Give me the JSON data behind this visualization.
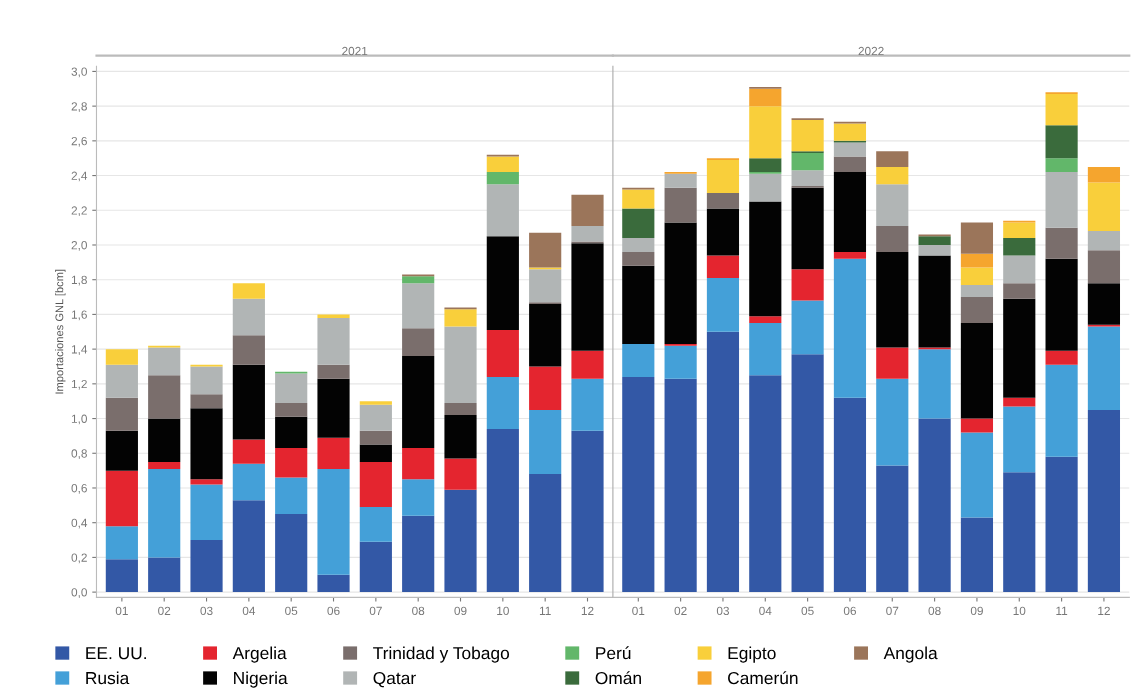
{
  "chart_data": [
    {
      "type": "bar",
      "stacked": true,
      "title": "2021",
      "ylabel": "Importaciones GNL [bcm]",
      "categories": [
        "01",
        "02",
        "03",
        "04",
        "05",
        "06",
        "07",
        "08",
        "09",
        "10",
        "11",
        "12"
      ],
      "ylim": [
        -0.03,
        3.03
      ],
      "yticks": [
        {
          "value": 0,
          "label": "0,0"
        },
        {
          "value": 0.2,
          "label": "0,2"
        },
        {
          "value": 0.4,
          "label": "0,4"
        },
        {
          "value": 0.6,
          "label": "0,6"
        },
        {
          "value": 0.8,
          "label": "0,8"
        },
        {
          "value": 1.0,
          "label": "1,0"
        },
        {
          "value": 1.2,
          "label": "1,2"
        },
        {
          "value": 1.4,
          "label": "1,4"
        },
        {
          "value": 1.6,
          "label": "1,6"
        },
        {
          "value": 1.8,
          "label": "1,8"
        },
        {
          "value": 2.0,
          "label": "2,0"
        },
        {
          "value": 2.2,
          "label": "2,2"
        },
        {
          "value": 2.4,
          "label": "2,4"
        },
        {
          "value": 2.6,
          "label": "2,6"
        },
        {
          "value": 2.8,
          "label": "2,8"
        },
        {
          "value": 3.0,
          "label": "3,0"
        }
      ],
      "grid": "y",
      "legend": "bottom",
      "series": [
        {
          "name": "EE. UU.",
          "color": "#3358a6",
          "values": [
            0.19,
            0.2,
            0.3,
            0.53,
            0.45,
            0.1,
            0.29,
            0.44,
            0.59,
            0.94,
            0.68,
            0.93
          ]
        },
        {
          "name": "Rusia",
          "color": "#44a0d8",
          "values": [
            0.19,
            0.51,
            0.32,
            0.21,
            0.21,
            0.61,
            0.2,
            0.21,
            0,
            0.3,
            0.37,
            0.3
          ]
        },
        {
          "name": "Argelia",
          "color": "#e4252f",
          "values": [
            0.32,
            0.04,
            0.03,
            0.14,
            0.17,
            0.18,
            0.26,
            0.18,
            0.18,
            0.27,
            0.25,
            0.16
          ]
        },
        {
          "name": "Nigeria",
          "color": "#030303",
          "values": [
            0.23,
            0.25,
            0.41,
            0.43,
            0.18,
            0.34,
            0.1,
            0.53,
            0.25,
            0.54,
            0.36,
            0.62
          ]
        },
        {
          "name": "Trinidad y Tobago",
          "color": "#7a6e6c",
          "values": [
            0.19,
            0.25,
            0.08,
            0.17,
            0.08,
            0.08,
            0.08,
            0.16,
            0.07,
            0,
            0.01,
            0.01
          ]
        },
        {
          "name": "Qatar",
          "color": "#b1b5b5",
          "values": [
            0.19,
            0.16,
            0.16,
            0.21,
            0.17,
            0.27,
            0.15,
            0.26,
            0.44,
            0.3,
            0.19,
            0.09
          ]
        },
        {
          "name": "Perú",
          "color": "#62b76a",
          "values": [
            0,
            0,
            0,
            0,
            0.01,
            0,
            0,
            0.04,
            0,
            0.07,
            0,
            0
          ]
        },
        {
          "name": "Omán",
          "color": "#3a6b3c",
          "values": [
            0,
            0,
            0,
            0,
            0,
            0,
            0,
            0,
            0,
            0,
            0,
            0
          ]
        },
        {
          "name": "Egipto",
          "color": "#f9cf3b",
          "values": [
            0.09,
            0.01,
            0.01,
            0.09,
            0,
            0.02,
            0.02,
            0,
            0.1,
            0.09,
            0.01,
            0
          ]
        },
        {
          "name": "Camerún",
          "color": "#f5a52e",
          "values": [
            0,
            0,
            0,
            0,
            0,
            0,
            0,
            0,
            0,
            0,
            0,
            0
          ]
        },
        {
          "name": "Angola",
          "color": "#9b755a",
          "values": [
            0,
            0,
            0,
            0,
            0,
            0,
            0,
            0.01,
            0.01,
            0.01,
            0.2,
            0.18
          ]
        }
      ]
    },
    {
      "type": "bar",
      "stacked": true,
      "title": "2022",
      "categories": [
        "01",
        "02",
        "03",
        "04",
        "05",
        "06",
        "07",
        "08",
        "09",
        "10",
        "11",
        "12"
      ],
      "ylim": [
        -0.03,
        3.03
      ],
      "grid": "y",
      "tick_labels": "x",
      "series": [
        {
          "color": "#3358a6",
          "values": [
            1.24,
            1.23,
            1.5,
            1.25,
            1.37,
            1.12,
            0.73,
            1.0,
            0.43,
            0.69,
            0.78,
            1.05
          ]
        },
        {
          "color": "#44a0d8",
          "values": [
            0.19,
            0.19,
            0.31,
            0.3,
            0.31,
            0.8,
            0.5,
            0.4,
            0.49,
            0.38,
            0.53,
            0.48
          ]
        },
        {
          "color": "#e4252f",
          "values": [
            0,
            0.01,
            0.13,
            0.04,
            0.18,
            0.04,
            0.18,
            0.01,
            0.08,
            0.05,
            0.08,
            0.01
          ]
        },
        {
          "color": "#030303",
          "values": [
            0.45,
            0.7,
            0.27,
            0.66,
            0.47,
            0.46,
            0.55,
            0.53,
            0.55,
            0.57,
            0.53,
            0.24
          ]
        },
        {
          "color": "#7a6e6c",
          "values": [
            0.08,
            0.2,
            0.09,
            0,
            0.01,
            0.09,
            0.15,
            0,
            0.15,
            0.09,
            0.18,
            0.19
          ]
        },
        {
          "color": "#b1b5b5",
          "values": [
            0.08,
            0.08,
            0,
            0.16,
            0.09,
            0.08,
            0.24,
            0.06,
            0.07,
            0.16,
            0.32,
            0.11
          ]
        },
        {
          "color": "#62b76a",
          "values": [
            0,
            0,
            0,
            0.01,
            0.1,
            0,
            0,
            0,
            0,
            0,
            0.08,
            0
          ]
        },
        {
          "color": "#3a6b3c",
          "values": [
            0.17,
            0,
            0,
            0.08,
            0.01,
            0.01,
            0,
            0.05,
            0,
            0.1,
            0.19,
            0
          ]
        },
        {
          "color": "#f9cf3b",
          "values": [
            0.11,
            0,
            0.19,
            0.3,
            0.18,
            0.1,
            0.1,
            0,
            0.1,
            0.09,
            0.18,
            0.28
          ]
        },
        {
          "color": "#f5a52e",
          "values": [
            0,
            0.01,
            0.01,
            0.1,
            0,
            0,
            0,
            0,
            0.08,
            0.01,
            0.01,
            0.09
          ]
        },
        {
          "color": "#9b755a",
          "values": [
            0.01,
            0,
            0,
            0.01,
            0.01,
            0.01,
            0.09,
            0.01,
            0.18,
            0,
            0,
            0
          ]
        }
      ]
    }
  ]
}
